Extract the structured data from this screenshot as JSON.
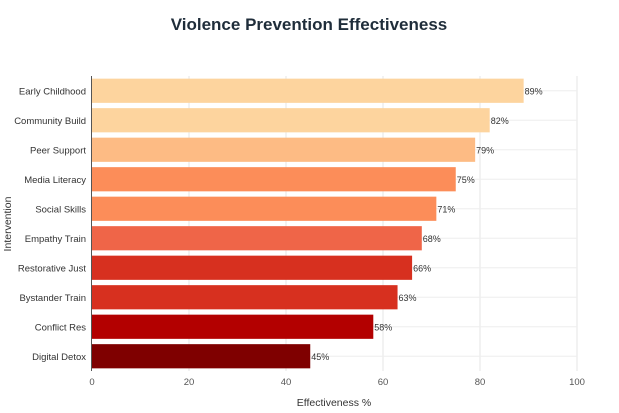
{
  "chart_data": {
    "type": "bar",
    "orientation": "horizontal",
    "title": "Violence Prevention Effectiveness",
    "xlabel": "Effectiveness %",
    "ylabel": "Intervention",
    "xlim": [
      0,
      100
    ],
    "xticks": [
      0,
      20,
      40,
      60,
      80,
      100
    ],
    "grid": true,
    "categories": [
      "Early Childhood",
      "Community Build",
      "Peer Support",
      "Media Literacy",
      "Social Skills",
      "Empathy Train",
      "Restorative Just",
      "Bystander Train",
      "Conflict Res",
      "Digital Detox"
    ],
    "values": [
      89,
      82,
      79,
      75,
      71,
      68,
      66,
      63,
      58,
      45
    ],
    "value_labels": [
      "89%",
      "82%",
      "79%",
      "75%",
      "71%",
      "68%",
      "66%",
      "63%",
      "58%",
      "45%"
    ],
    "colors": [
      "#fdd49e",
      "#fdd49e",
      "#fdbb84",
      "#fc8d59",
      "#fc8d59",
      "#ef6548",
      "#d7301f",
      "#d7301f",
      "#b30000",
      "#7f0000"
    ]
  }
}
